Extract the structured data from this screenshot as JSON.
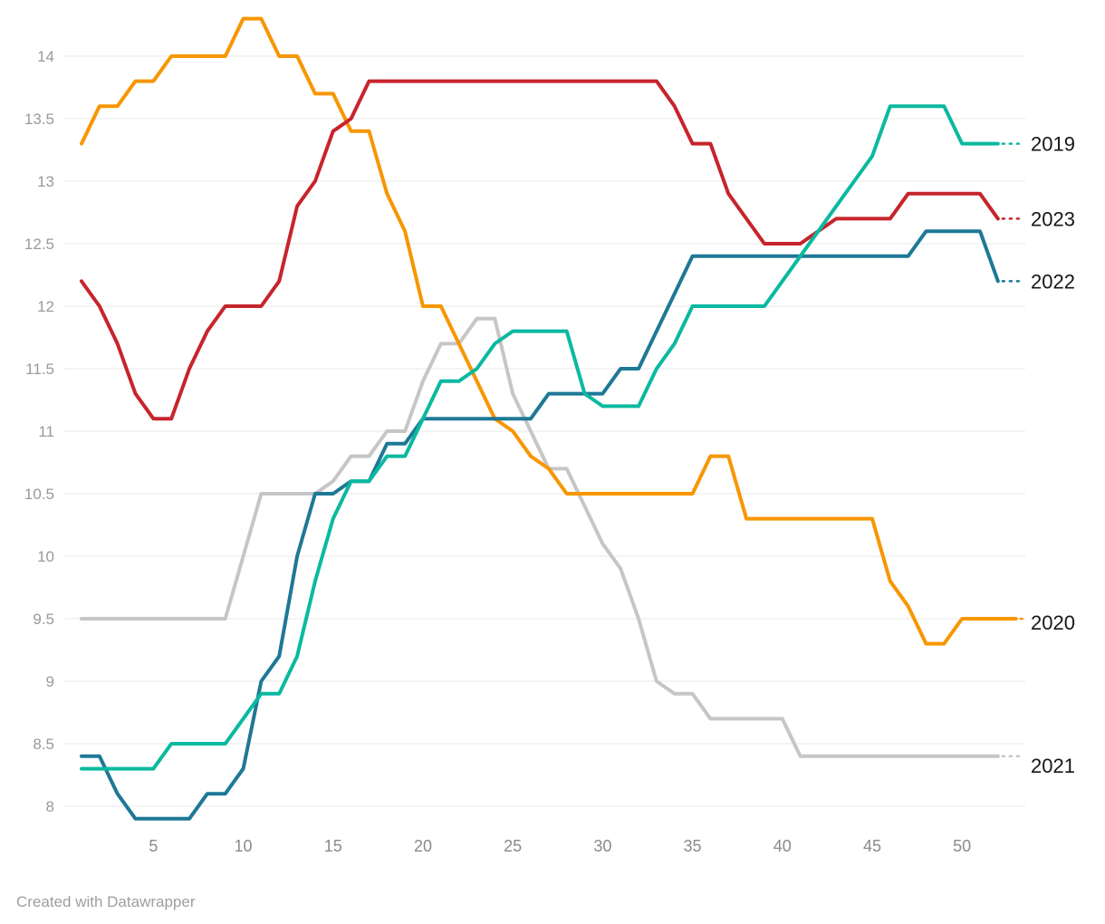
{
  "chart_data": {
    "type": "line",
    "title": "",
    "xlabel": "",
    "ylabel": "",
    "x_unit": "week",
    "xlim": [
      1,
      53
    ],
    "ylim": [
      8,
      14.3
    ],
    "grid": "horizontal",
    "legend_position": "right-direct-labels",
    "x_ticks": [
      5,
      10,
      15,
      20,
      25,
      30,
      35,
      40,
      45,
      50
    ],
    "y_ticks": [
      8,
      8.5,
      9,
      9.5,
      10,
      10.5,
      11,
      11.5,
      12,
      12.5,
      13,
      13.5,
      14
    ],
    "y_tick_labels": [
      "8",
      "8.5",
      "9",
      "9.5",
      "10",
      "10.5",
      "11",
      "11.5",
      "12",
      "12.5",
      "13",
      "13.5",
      "14"
    ],
    "series": [
      {
        "name": "2021",
        "color": "#c6c6c6",
        "values": [
          9.5,
          9.5,
          9.5,
          9.5,
          9.5,
          9.5,
          9.5,
          9.5,
          9.5,
          10.0,
          10.5,
          10.5,
          10.5,
          10.5,
          10.6,
          10.8,
          10.8,
          11.0,
          11.0,
          11.4,
          11.7,
          11.7,
          11.9,
          11.9,
          11.3,
          11.0,
          10.7,
          10.7,
          10.4,
          10.1,
          9.9,
          9.5,
          9.0,
          8.9,
          8.9,
          8.7,
          8.7,
          8.7,
          8.7,
          8.7,
          8.4,
          8.4,
          8.4,
          8.4,
          8.4,
          8.4,
          8.4,
          8.4,
          8.4,
          8.4,
          8.4,
          8.4
        ]
      },
      {
        "name": "2020",
        "color": "#f89600",
        "values": [
          13.3,
          13.6,
          13.6,
          13.8,
          13.8,
          14.0,
          14.0,
          14.0,
          14.0,
          14.3,
          14.3,
          14.0,
          14.0,
          13.7,
          13.7,
          13.4,
          13.4,
          12.9,
          12.6,
          12.0,
          12.0,
          11.7,
          11.4,
          11.1,
          11.0,
          10.8,
          10.7,
          10.5,
          10.5,
          10.5,
          10.5,
          10.5,
          10.5,
          10.5,
          10.5,
          10.8,
          10.8,
          10.3,
          10.3,
          10.3,
          10.3,
          10.3,
          10.3,
          10.3,
          10.3,
          9.8,
          9.6,
          9.3,
          9.3,
          9.5,
          9.5,
          9.5,
          9.5
        ]
      },
      {
        "name": "2023",
        "color": "#c7242c",
        "values": [
          12.2,
          12.0,
          11.7,
          11.3,
          11.1,
          11.1,
          11.5,
          11.8,
          12.0,
          12.0,
          12.0,
          12.2,
          12.8,
          13.0,
          13.4,
          13.5,
          13.8,
          13.8,
          13.8,
          13.8,
          13.8,
          13.8,
          13.8,
          13.8,
          13.8,
          13.8,
          13.8,
          13.8,
          13.8,
          13.8,
          13.8,
          13.8,
          13.8,
          13.6,
          13.3,
          13.3,
          12.9,
          12.7,
          12.5,
          12.5,
          12.5,
          12.6,
          12.7,
          12.7,
          12.7,
          12.7,
          12.9,
          12.9,
          12.9,
          12.9,
          12.9,
          12.7
        ]
      },
      {
        "name": "2022",
        "color": "#1e7896",
        "values": [
          8.4,
          8.4,
          8.1,
          7.9,
          7.9,
          7.9,
          7.9,
          8.1,
          8.1,
          8.3,
          9.0,
          9.2,
          10.0,
          10.5,
          10.5,
          10.6,
          10.6,
          10.9,
          10.9,
          11.1,
          11.1,
          11.1,
          11.1,
          11.1,
          11.1,
          11.1,
          11.3,
          11.3,
          11.3,
          11.3,
          11.5,
          11.5,
          11.8,
          12.1,
          12.4,
          12.4,
          12.4,
          12.4,
          12.4,
          12.4,
          12.4,
          12.4,
          12.4,
          12.4,
          12.4,
          12.4,
          12.4,
          12.6,
          12.6,
          12.6,
          12.6,
          12.2
        ]
      },
      {
        "name": "2019",
        "color": "#0ab9a0",
        "values": [
          8.3,
          8.3,
          8.3,
          8.3,
          8.3,
          8.5,
          8.5,
          8.5,
          8.5,
          8.7,
          8.9,
          8.9,
          9.2,
          9.8,
          10.3,
          10.6,
          10.6,
          10.8,
          10.8,
          11.1,
          11.4,
          11.4,
          11.5,
          11.7,
          11.8,
          11.8,
          11.8,
          11.8,
          11.3,
          11.2,
          11.2,
          11.2,
          11.5,
          11.7,
          12.0,
          12.0,
          12.0,
          12.0,
          12.0,
          12.2,
          12.4,
          12.6,
          12.8,
          13.0,
          13.2,
          13.6,
          13.6,
          13.6,
          13.6,
          13.3,
          13.3,
          13.3
        ]
      }
    ],
    "direct_labels": [
      {
        "series": "2019",
        "text": "2019"
      },
      {
        "series": "2023",
        "text": "2023"
      },
      {
        "series": "2022",
        "text": "2022"
      },
      {
        "series": "2020",
        "text": "2020"
      },
      {
        "series": "2021",
        "text": "2021"
      }
    ]
  },
  "footer": {
    "credit": "Created with Datawrapper"
  }
}
